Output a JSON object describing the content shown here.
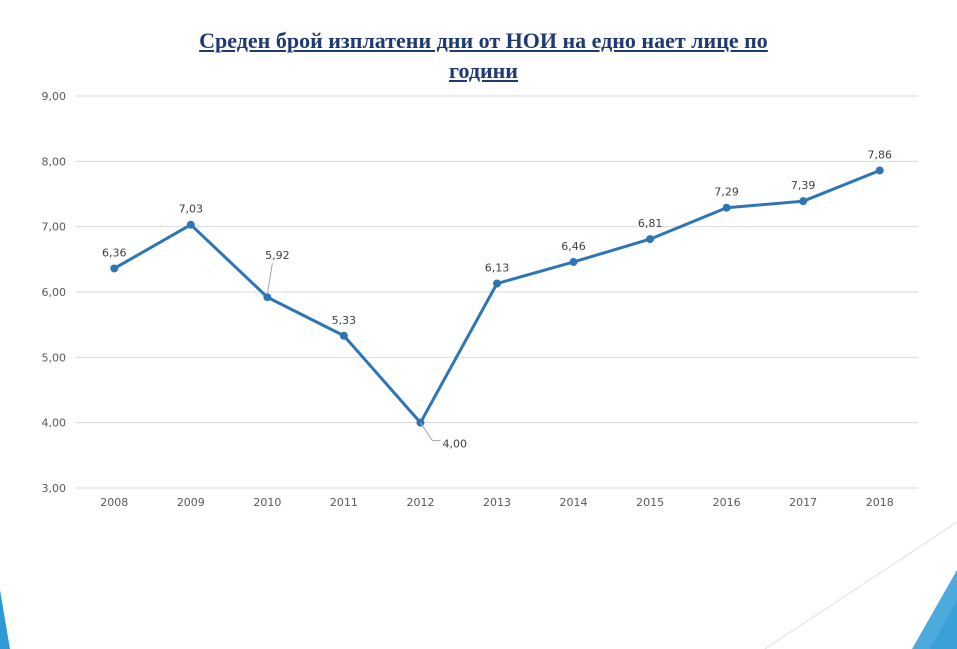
{
  "chart_data": {
    "type": "line",
    "title_lines": [
      "Среден брой изплатени дни от НОИ на едно нает лице по",
      "години"
    ],
    "xlabel": "",
    "ylabel": "",
    "categories": [
      "2008",
      "2009",
      "2010",
      "2011",
      "2012",
      "2013",
      "2014",
      "2015",
      "2016",
      "2017",
      "2018"
    ],
    "values": [
      6.36,
      7.03,
      5.92,
      5.33,
      4.0,
      6.13,
      6.46,
      6.81,
      7.29,
      7.39,
      7.86
    ],
    "data_labels": [
      "6,36",
      "7,03",
      "5,92",
      "5,33",
      "4,00",
      "6,13",
      "6,46",
      "6,81",
      "7,29",
      "7,39",
      "7,86"
    ],
    "ylim": [
      3,
      9
    ],
    "yticks": [
      3,
      4,
      5,
      6,
      7,
      8,
      9
    ],
    "ytick_labels": [
      "3,00",
      "4,00",
      "5,00",
      "6,00",
      "7,00",
      "8,00",
      "9,00"
    ],
    "grid": "horizontal",
    "line_color": "#2E75B6",
    "grid_color": "#D9D9D9",
    "title_color": "#1F3A73"
  },
  "decor": {
    "accent_color": "#2E9BD6"
  }
}
